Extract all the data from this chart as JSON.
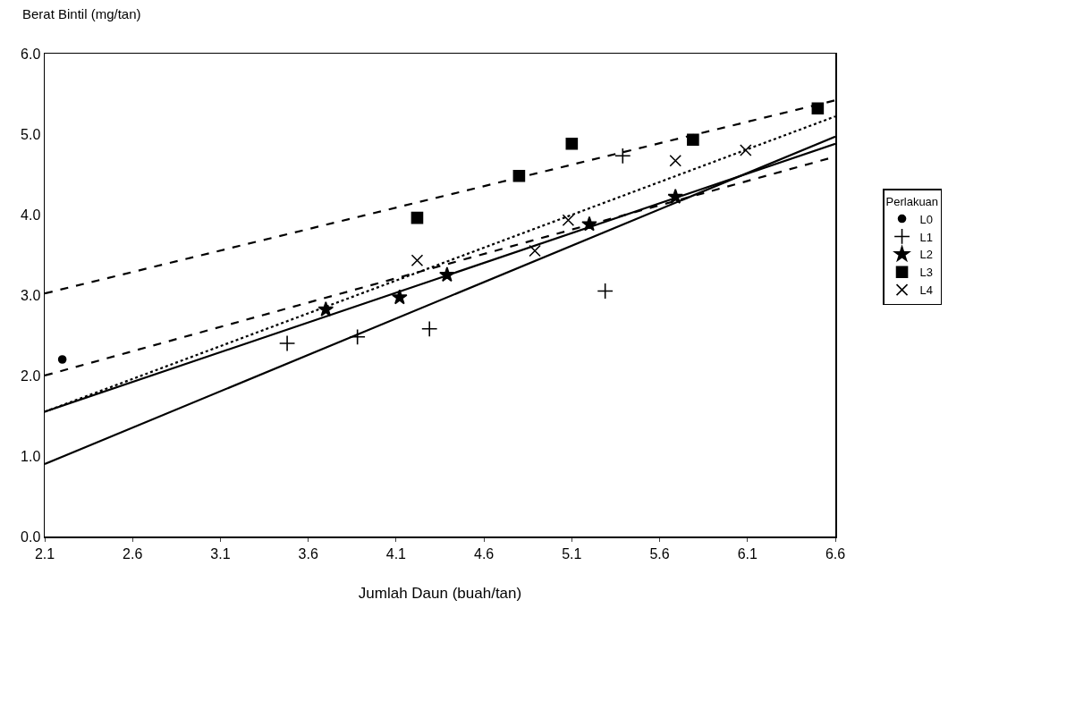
{
  "chart_data": {
    "type": "scatter",
    "xlabel": "Jumlah Daun (buah/tan)",
    "ylabel": "Berat Bintil (mg/tan)",
    "legend_title": "Perlakuan",
    "legend": "right",
    "xlim": [
      2.1,
      6.6
    ],
    "xticks": [
      2.1,
      2.6,
      3.1,
      3.6,
      4.1,
      4.6,
      5.1,
      5.6,
      6.1,
      6.6
    ],
    "ylim": [
      0,
      6
    ],
    "yticks": [
      {
        "value": 0,
        "label": "0.0"
      },
      {
        "value": 1,
        "label": "1.0"
      },
      {
        "value": 2,
        "label": "2.0"
      },
      {
        "value": 3,
        "label": "3.0"
      },
      {
        "value": 4,
        "label": "4.0"
      },
      {
        "value": 5,
        "label": "5.0"
      },
      {
        "value": 6,
        "label": "6.0"
      }
    ],
    "series": [
      {
        "name": "L0",
        "marker": "circle",
        "color": "#000000",
        "x": [
          2.2
        ],
        "values": [
          2.2
        ]
      },
      {
        "name": "L1",
        "marker": "cross",
        "color": "#000000",
        "x": [
          3.48,
          3.88,
          4.29,
          5.29,
          5.39
        ],
        "values": [
          2.4,
          2.48,
          2.58,
          3.05,
          4.73
        ]
      },
      {
        "name": "L2",
        "marker": "star",
        "color": "#000000",
        "x": [
          3.7,
          4.12,
          4.39,
          5.2,
          5.69
        ],
        "values": [
          2.82,
          2.97,
          3.25,
          3.88,
          4.22
        ]
      },
      {
        "name": "L3",
        "marker": "square",
        "color": "#000000",
        "x": [
          4.22,
          4.8,
          5.1,
          5.79,
          6.5
        ],
        "values": [
          3.96,
          4.48,
          4.88,
          4.93,
          5.32
        ]
      },
      {
        "name": "L4",
        "marker": "x",
        "color": "#000000",
        "x": [
          4.22,
          4.89,
          5.08,
          5.69,
          6.09
        ],
        "values": [
          3.43,
          3.55,
          3.93,
          4.67,
          4.8
        ]
      },
      {
        "type": "line",
        "line_style": "dotted",
        "color": "#000000",
        "x": [
          2.1,
          6.6
        ],
        "values": [
          1.55,
          5.22
        ]
      },
      {
        "type": "line",
        "line_style": "solid",
        "color": "#000000",
        "x": [
          2.1,
          6.6
        ],
        "values": [
          0.9,
          4.97
        ]
      },
      {
        "type": "line",
        "line_style": "solid",
        "color": "#000000",
        "x": [
          2.1,
          6.6
        ],
        "values": [
          1.55,
          4.88
        ]
      },
      {
        "type": "line",
        "line_style": "dashed",
        "color": "#000000",
        "x": [
          2.1,
          6.6
        ],
        "values": [
          3.02,
          5.42
        ]
      },
      {
        "type": "line",
        "line_style": "dashed",
        "color": "#000000",
        "x": [
          2.1,
          6.6
        ],
        "values": [
          2.0,
          4.72
        ]
      }
    ]
  }
}
